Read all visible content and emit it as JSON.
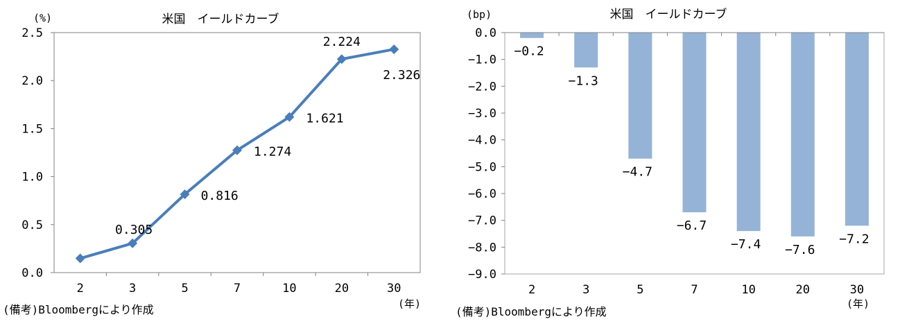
{
  "chart_data": [
    {
      "type": "line",
      "title": "米国　イールドカーブ",
      "y_unit": "(%)",
      "x_unit": "(年)",
      "categories": [
        "2",
        "3",
        "5",
        "7",
        "10",
        "20",
        "30"
      ],
      "values": [
        0.148,
        0.305,
        0.816,
        1.274,
        1.621,
        2.224,
        2.326
      ],
      "data_labels": [
        "",
        "0.305",
        "0.816",
        "1.274",
        "1.621",
        "2.224",
        "2.326"
      ],
      "y_ticks": [
        "0.0",
        "0.5",
        "1.0",
        "1.5",
        "2.0",
        "2.5"
      ],
      "ylim": [
        0,
        2.5
      ],
      "color": "#4a7ebb",
      "note": "(備考)Bloombergにより作成"
    },
    {
      "type": "bar",
      "title": "米国　イールドカーブ",
      "y_unit": "(bp)",
      "x_unit": "(年)",
      "categories": [
        "2",
        "3",
        "5",
        "7",
        "10",
        "20",
        "30"
      ],
      "values": [
        -0.2,
        -1.3,
        -4.7,
        -6.7,
        -7.4,
        -7.6,
        -7.2
      ],
      "data_labels": [
        "-0.2",
        "-1.3",
        "-4.7",
        "-6.7",
        "-7.4",
        "-7.6",
        "-7.2"
      ],
      "y_ticks": [
        "0.0",
        "-1.0",
        "-2.0",
        "-3.0",
        "-4.0",
        "-5.0",
        "-6.0",
        "-7.0",
        "-8.0",
        "-9.0"
      ],
      "ylim": [
        -9,
        0
      ],
      "color": "#95b3d7",
      "note": "(備考)Bloombergにより作成"
    }
  ]
}
